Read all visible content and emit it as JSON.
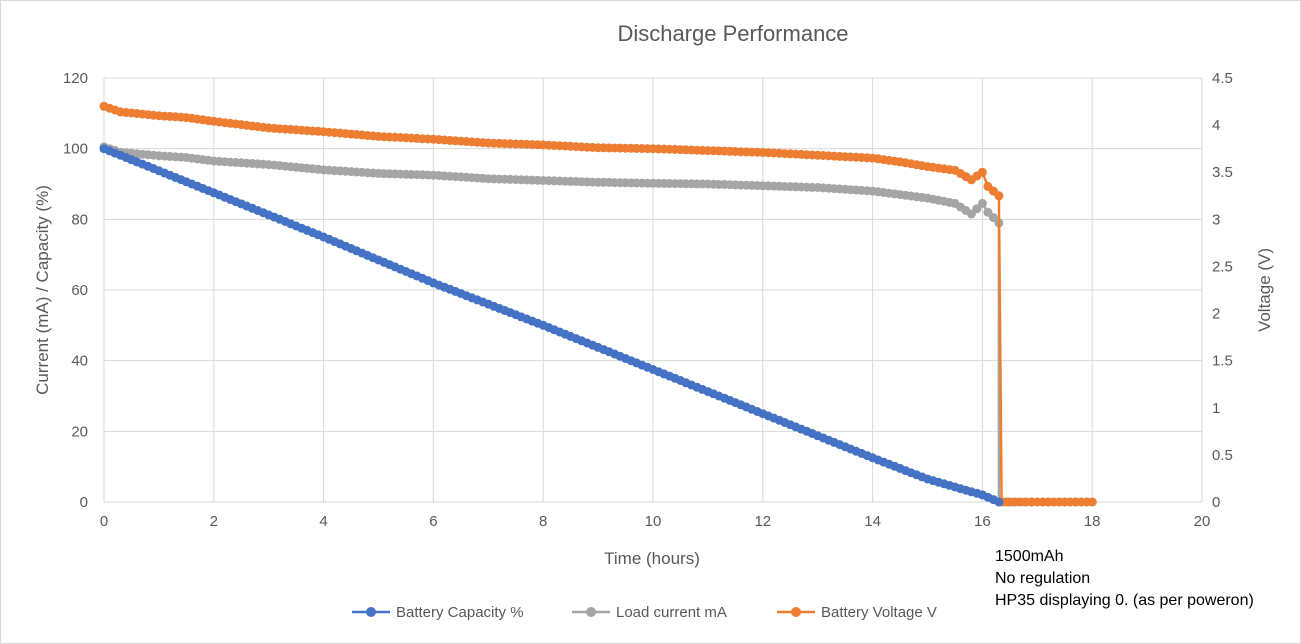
{
  "chart_data": {
    "type": "line",
    "title": "Discharge Performance",
    "xlabel": "Time (hours)",
    "ylabel": "Current  (mA) / Capacity (%)",
    "y2label": "Voltage (V)",
    "xlim": [
      0,
      20
    ],
    "ylim": [
      0,
      120
    ],
    "y2lim": [
      0,
      4.5
    ],
    "x_ticks": [
      "0",
      "2",
      "4",
      "6",
      "8",
      "10",
      "12",
      "14",
      "16",
      "18",
      "20"
    ],
    "y_ticks": [
      "0",
      "20",
      "40",
      "60",
      "80",
      "100",
      "120"
    ],
    "y2_ticks": [
      "0",
      "0.5",
      "1",
      "1.5",
      "2",
      "2.5",
      "3",
      "3.5",
      "4",
      "4.5"
    ],
    "grid": true,
    "legend_position": "bottom",
    "series": [
      {
        "name": "Battery Capacity %",
        "axis": "left",
        "color": "#4472c4",
        "x": [
          0,
          2,
          4,
          6,
          8,
          10,
          12,
          14,
          15,
          16,
          16.3
        ],
        "values": [
          100,
          87.5,
          75,
          62,
          50,
          37.5,
          25,
          12.5,
          6.5,
          2,
          0
        ]
      },
      {
        "name": "Load current mA",
        "axis": "left",
        "color": "#a5a5a5",
        "x": [
          0,
          0.3,
          1,
          1.5,
          2,
          3,
          4,
          5,
          6,
          7,
          8,
          9,
          10,
          11,
          12,
          13,
          14,
          14.5,
          15,
          15.5,
          15.8,
          16,
          16.1,
          16.3,
          16.3,
          17,
          18
        ],
        "values": [
          100.5,
          99,
          98,
          97.5,
          96.5,
          95.5,
          94,
          93,
          92.5,
          91.5,
          91,
          90.5,
          90.2,
          90,
          89.5,
          89,
          88,
          87,
          86,
          84.5,
          81.5,
          84.5,
          82,
          79,
          0,
          0,
          0
        ]
      },
      {
        "name": "Battery Voltage V",
        "axis": "right",
        "color": "#ed7d31",
        "x": [
          0,
          0.3,
          1,
          1.5,
          2,
          3,
          4,
          5,
          6,
          7,
          8,
          9,
          10,
          11,
          12,
          13,
          14,
          14.5,
          15,
          15.5,
          15.8,
          16,
          16.1,
          16.3,
          16.35,
          17,
          18
        ],
        "values": [
          4.2,
          4.14,
          4.1,
          4.08,
          4.04,
          3.97,
          3.93,
          3.88,
          3.85,
          3.81,
          3.79,
          3.76,
          3.75,
          3.73,
          3.71,
          3.68,
          3.65,
          3.61,
          3.56,
          3.52,
          3.42,
          3.5,
          3.35,
          3.25,
          0,
          0,
          0
        ]
      }
    ]
  },
  "annotation": {
    "line1": "1500mAh",
    "line2": "No regulation",
    "line3": "HP35 displaying 0. (as per poweron)"
  }
}
